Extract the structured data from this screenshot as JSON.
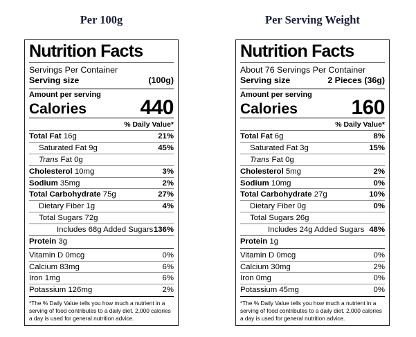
{
  "headings": {
    "left": "Per 100g",
    "right": "Per Serving Weight"
  },
  "colors": {
    "background": "#ffffff",
    "heading_text": "#1c1c3a",
    "label_text": "#000000",
    "divider_bar": "#000000",
    "hairline": "#888888"
  },
  "labels": [
    {
      "title": "Nutrition Facts",
      "servings_per_container": "Servings Per Container",
      "serving_size_label": "Serving size",
      "serving_size_value": "(100g)",
      "amount_per_serving": "Amount per serving",
      "calories_label": "Calories",
      "calories_value": "440",
      "daily_value_header": "% Daily Value*",
      "nutrients": [
        {
          "bold": "Total Fat",
          "regular": "16g",
          "pct": "21%",
          "indent": 0
        },
        {
          "regular": "Saturated Fat 9g",
          "pct": "45%",
          "indent": 1
        },
        {
          "italic": "Trans",
          "regular": "Fat 0g",
          "pct": "",
          "indent": 1
        },
        {
          "bold": "Cholesterol",
          "regular": "10mg",
          "pct": "3%",
          "indent": 0
        },
        {
          "bold": "Sodium",
          "regular": "35mg",
          "pct": "2%",
          "indent": 0
        },
        {
          "bold": "Total Carbohydrate",
          "regular": "75g",
          "pct": "27%",
          "indent": 0
        },
        {
          "regular": "Dietary Fiber 1g",
          "pct": "4%",
          "indent": 1
        },
        {
          "regular": "Total Sugars 72g",
          "pct": "",
          "indent": 1
        },
        {
          "regular": "Includes 68g Added Sugars",
          "pct": "136%",
          "indent": 2
        },
        {
          "bold": "Protein",
          "regular": "3g",
          "pct": "",
          "indent": 0
        }
      ],
      "vitamins": [
        {
          "regular": "Vitamin D 0mcg",
          "pct": "0%"
        },
        {
          "regular": "Calcium 83mg",
          "pct": "6%"
        },
        {
          "regular": "Iron 1mg",
          "pct": "6%"
        },
        {
          "regular": "Potassium 126mg",
          "pct": "2%"
        }
      ],
      "footnote": "*The % Daily Value tells you how much a nutrient in a serving of food contributes to a daily diet. 2,000 calories a day is used for general nutrition advice."
    },
    {
      "title": "Nutrition Facts",
      "servings_per_container": "About 76 Servings Per Container",
      "serving_size_label": "Serving size",
      "serving_size_value": "2 Pieces (36g)",
      "amount_per_serving": "Amount per serving",
      "calories_label": "Calories",
      "calories_value": "160",
      "daily_value_header": "% Daily Value*",
      "nutrients": [
        {
          "bold": "Total Fat",
          "regular": "6g",
          "pct": "8%",
          "indent": 0
        },
        {
          "regular": "Saturated Fat 3g",
          "pct": "15%",
          "indent": 1
        },
        {
          "italic": "Trans",
          "regular": "Fat 0g",
          "pct": "",
          "indent": 1
        },
        {
          "bold": "Cholesterol",
          "regular": "5mg",
          "pct": "2%",
          "indent": 0
        },
        {
          "bold": "Sodium",
          "regular": "10mg",
          "pct": "0%",
          "indent": 0
        },
        {
          "bold": "Total Carbohydrate",
          "regular": "27g",
          "pct": "10%",
          "indent": 0
        },
        {
          "regular": "Dietary Fiber 0g",
          "pct": "0%",
          "indent": 1
        },
        {
          "regular": "Total Sugars 26g",
          "pct": "",
          "indent": 1
        },
        {
          "regular": "Includes 24g Added Sugars",
          "pct": "48%",
          "indent": 2
        },
        {
          "bold": "Protein",
          "regular": "1g",
          "pct": "",
          "indent": 0
        }
      ],
      "vitamins": [
        {
          "regular": "Vitamin D 0mcg",
          "pct": "0%"
        },
        {
          "regular": "Calcium 30mg",
          "pct": "2%"
        },
        {
          "regular": "Iron 0mg",
          "pct": "0%"
        },
        {
          "regular": "Potassium 45mg",
          "pct": "0%"
        }
      ],
      "footnote": "*The % Daily Value tells you how much a nutrient in a serving of food contributes to a daily diet. 2,000 calories a day is used for general nutrition advice."
    }
  ]
}
